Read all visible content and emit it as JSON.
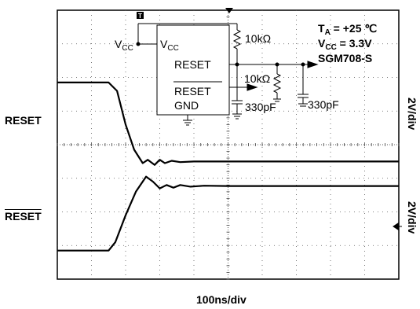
{
  "chart_data": {
    "type": "line",
    "title": "",
    "xlabel": "100ns/div",
    "x_divisions": 10,
    "y_divisions": 8,
    "grid": true,
    "series": [
      {
        "name": "RESET",
        "scale": "2V/div",
        "x": [
          0,
          1.5,
          1.75,
          2.0,
          2.25,
          2.5,
          2.65,
          2.85,
          3.0,
          3.15,
          3.35,
          3.6,
          4.0,
          5.0,
          10.0
        ],
        "y": [
          5.85,
          5.85,
          5.6,
          4.6,
          3.85,
          3.45,
          3.55,
          3.4,
          3.55,
          3.45,
          3.52,
          3.48,
          3.5,
          3.5,
          3.5
        ]
      },
      {
        "name": "RESET",
        "overline": true,
        "scale": "2V/div",
        "x": [
          0,
          1.5,
          1.7,
          2.0,
          2.3,
          2.6,
          2.8,
          3.0,
          3.2,
          3.4,
          3.6,
          3.9,
          4.3,
          5.0,
          10.0
        ],
        "y": [
          0.85,
          0.85,
          1.1,
          1.9,
          2.6,
          3.05,
          2.9,
          2.7,
          2.8,
          2.72,
          2.8,
          2.75,
          2.78,
          2.77,
          2.77
        ]
      }
    ],
    "axis_labels": {
      "left": [
        "RESET",
        "RESET"
      ],
      "right": [
        "2V/div",
        "2V/div"
      ]
    },
    "annotations": {
      "ta": "T",
      "ta_sub": "A",
      "ta_val": " = +25 ℃",
      "vcc": "V",
      "vcc_sub": "CC",
      "vcc_val": " = 3.3V",
      "part": "SGM708-S"
    },
    "schematic": {
      "vcc_left": "V",
      "vcc_left_sub": "CC",
      "vcc_pin": "V",
      "vcc_pin_sub": "CC",
      "reset_pin": "RESET",
      "reset_bar_pin": "RESET",
      "gnd_pin": "GND",
      "r1": "10kΩ",
      "r2": "10kΩ",
      "c1": "330pF",
      "c2": "330pF",
      "trigger_marker": "T"
    }
  }
}
